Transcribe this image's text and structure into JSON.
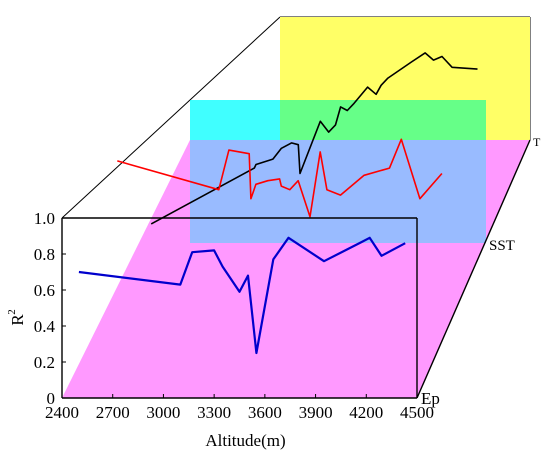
{
  "chart_data": {
    "type": "line",
    "xlabel": "Altitude(m)",
    "ylabel": "R",
    "ylabel_superscript": "2",
    "xlim": [
      2400,
      4500
    ],
    "ylim": [
      0,
      1.0
    ],
    "x_ticks": [
      "2400",
      "2700",
      "3000",
      "3300",
      "3600",
      "3900",
      "4200",
      "4500"
    ],
    "y_ticks": [
      "0",
      "0.2",
      "0.4",
      "0.6",
      "0.8",
      "1.0"
    ],
    "planes": [
      {
        "name": "Ep",
        "color": "#ff99ff"
      },
      {
        "name": "SST",
        "color": "#00ffff"
      },
      {
        "name": "T",
        "color": "#ffff66"
      }
    ],
    "series": [
      {
        "name": "Ep",
        "color": "#0000cc",
        "x": [
          2500,
          3100,
          3170,
          3300,
          3350,
          3450,
          3500,
          3550,
          3650,
          3740,
          3950,
          4180,
          4220,
          4290,
          4430
        ],
        "y": [
          0.7,
          0.63,
          0.81,
          0.82,
          0.73,
          0.59,
          0.68,
          0.25,
          0.77,
          0.89,
          0.76,
          0.87,
          0.89,
          0.79,
          0.86
        ]
      },
      {
        "name": "SST",
        "color": "#ff0000",
        "x": [
          2500,
          3100,
          3160,
          3280,
          3290,
          3320,
          3390,
          3460,
          3470,
          3520,
          3570,
          3640,
          3700,
          3740,
          3820,
          3960,
          4110,
          4180,
          4290,
          4420
        ],
        "y": [
          0.83,
          0.67,
          0.89,
          0.87,
          0.62,
          0.7,
          0.72,
          0.73,
          0.69,
          0.67,
          0.72,
          0.52,
          0.88,
          0.67,
          0.64,
          0.75,
          0.79,
          0.95,
          0.62,
          0.76
        ]
      },
      {
        "name": "T",
        "color": "#000000",
        "x": [
          2500,
          3110,
          3120,
          3220,
          3270,
          3330,
          3370,
          3380,
          3500,
          3550,
          3590,
          3620,
          3660,
          3700,
          3780,
          3830,
          3860,
          3900,
          4040,
          4120,
          4170,
          4220,
          4280,
          4430
        ],
        "y": [
          0.05,
          0.36,
          0.38,
          0.41,
          0.47,
          0.5,
          0.49,
          0.33,
          0.62,
          0.56,
          0.6,
          0.7,
          0.68,
          0.72,
          0.81,
          0.77,
          0.82,
          0.86,
          0.95,
          1.0,
          0.96,
          0.98,
          0.92,
          0.91
        ]
      }
    ]
  }
}
